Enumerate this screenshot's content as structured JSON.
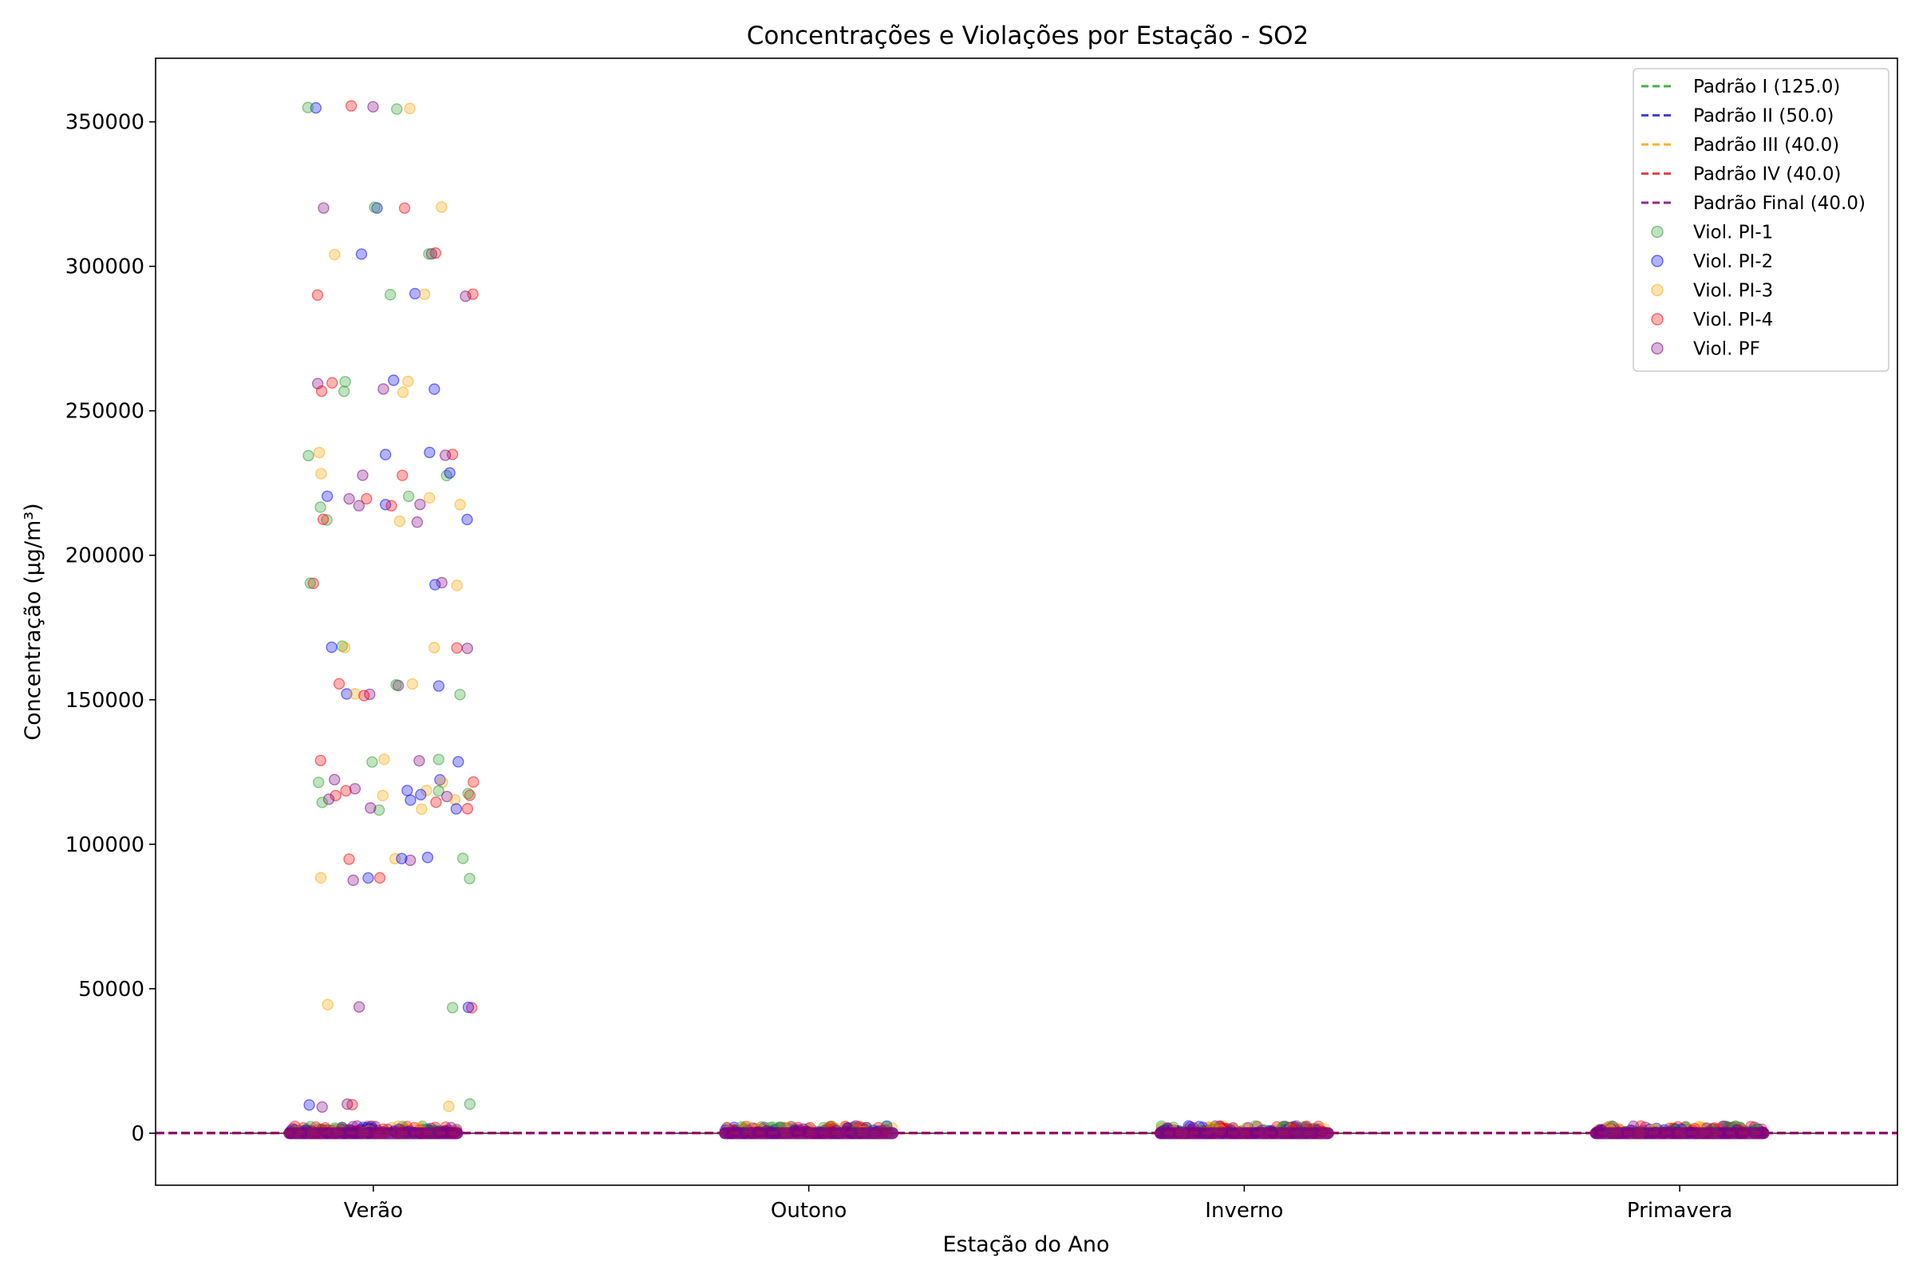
{
  "chart_data": {
    "type": "scatter",
    "title": "Concentrações e Violações por Estação - SO2",
    "xlabel": "Estação do Ano",
    "ylabel": "Concentração (µg/m³)",
    "categories": [
      "Verão",
      "Outono",
      "Inverno",
      "Primavera"
    ],
    "ylim": [
      -18000,
      372000
    ],
    "yticks": [
      0,
      50000,
      100000,
      150000,
      200000,
      250000,
      300000,
      350000
    ],
    "ytick_labels": [
      "0",
      "50000",
      "100000",
      "150000",
      "200000",
      "250000",
      "300000",
      "350000"
    ],
    "grid": false,
    "legend_position": "top-right",
    "standards": [
      {
        "name": "Padrão I (125.0)",
        "value": 125.0,
        "color": "#2ca02c"
      },
      {
        "name": "Padrão II (50.0)",
        "value": 50.0,
        "color": "#1f1fe0"
      },
      {
        "name": "Padrão III (40.0)",
        "value": 40.0,
        "color": "#ffa500"
      },
      {
        "name": "Padrão IV (40.0)",
        "value": 40.0,
        "color": "#e62020"
      },
      {
        "name": "Padrão Final (40.0)",
        "value": 40.0,
        "color": "#800080"
      }
    ],
    "series": [
      {
        "name": "Viol. PI-1",
        "color": "#2ca02c"
      },
      {
        "name": "Viol. PI-2",
        "color": "#0000ff"
      },
      {
        "name": "Viol. PI-3",
        "color": "#ffa500"
      },
      {
        "name": "Viol. PI-4",
        "color": "#ff0000"
      },
      {
        "name": "Viol. PF",
        "color": "#800080"
      }
    ],
    "high_values": [
      355000,
      320000,
      304000,
      290000,
      260000,
      257000,
      235000,
      228000,
      220000,
      217000,
      212000,
      190000,
      168000,
      155000,
      152000,
      129000,
      122000,
      119000,
      117000,
      115000,
      112000,
      95000,
      88000,
      44000,
      9500
    ]
  }
}
